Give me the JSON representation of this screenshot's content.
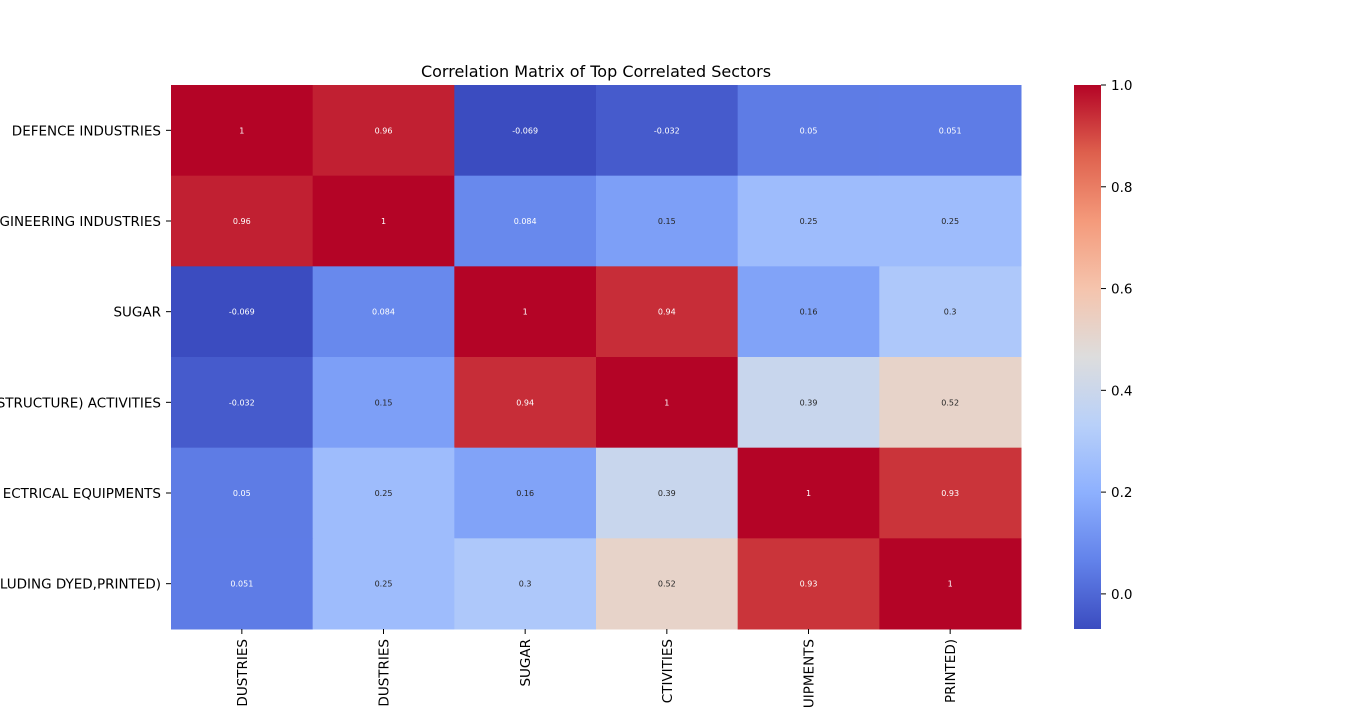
{
  "chart_data": {
    "type": "heatmap",
    "title": "Correlation Matrix of Top Correlated Sectors",
    "row_labels": [
      "DEFENCE INDUSTRIES",
      "GINEERING INDUSTRIES",
      "SUGAR",
      "STRUCTURE) ACTIVITIES",
      "ECTRICAL EQUIPMENTS",
      "LUDING DYED,PRINTED)"
    ],
    "col_labels": [
      "DUSTRIES",
      "DUSTRIES",
      "SUGAR",
      "CTIVITIES",
      "UIPMENTS",
      "PRINTED)"
    ],
    "values": [
      [
        1,
        0.96,
        -0.069,
        -0.032,
        0.05,
        0.051
      ],
      [
        0.96,
        1,
        0.084,
        0.15,
        0.25,
        0.25
      ],
      [
        -0.069,
        0.084,
        1,
        0.94,
        0.16,
        0.3
      ],
      [
        -0.032,
        0.15,
        0.94,
        1,
        0.39,
        0.52
      ],
      [
        0.05,
        0.25,
        0.16,
        0.39,
        1,
        0.93
      ],
      [
        0.051,
        0.25,
        0.3,
        0.52,
        0.93,
        1
      ]
    ],
    "annotations": [
      [
        "1",
        "0.96",
        "-0.069",
        "-0.032",
        "0.05",
        "0.051"
      ],
      [
        "0.96",
        "1",
        "0.084",
        "0.15",
        "0.25",
        "0.25"
      ],
      [
        "-0.069",
        "0.084",
        "1",
        "0.94",
        "0.16",
        "0.3"
      ],
      [
        "-0.032",
        "0.15",
        "0.94",
        "1",
        "0.39",
        "0.52"
      ],
      [
        "0.05",
        "0.25",
        "0.16",
        "0.39",
        "1",
        "0.93"
      ],
      [
        "0.051",
        "0.25",
        "0.3",
        "0.52",
        "0.93",
        "1"
      ]
    ],
    "colormap": "coolwarm",
    "vmin": -0.069,
    "vmax": 1.0,
    "colorbar_ticks": [
      "0.0",
      "0.2",
      "0.4",
      "0.6",
      "0.8",
      "1.0"
    ],
    "colorbar_tick_values": [
      0.0,
      0.2,
      0.4,
      0.6,
      0.8,
      1.0
    ]
  }
}
